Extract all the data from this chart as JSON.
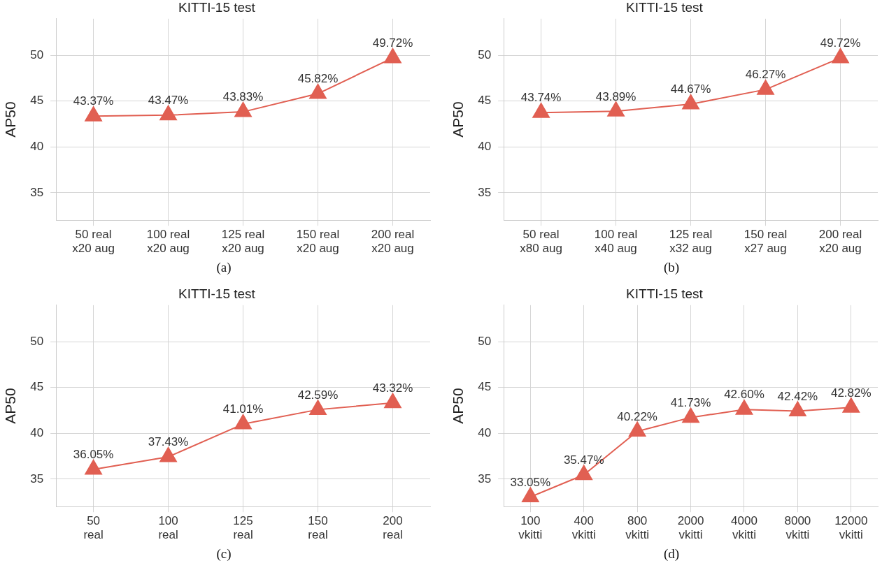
{
  "chart_data": [
    {
      "type": "line",
      "title": "KITTI-15 test",
      "ylabel": "AP50",
      "categories": [
        "50 real\nx20 aug",
        "100 real\nx20 aug",
        "125 real\nx20 aug",
        "150 real\nx20 aug",
        "200 real\nx20 aug"
      ],
      "series": [
        {
          "color": "#e15f52",
          "values": [
            43.37,
            43.47,
            43.83,
            45.82,
            49.72
          ],
          "value_labels": [
            "43.37%",
            "43.47%",
            "43.83%",
            "45.82%",
            "49.72%"
          ]
        }
      ],
      "ylim": [
        32,
        54
      ],
      "yticks": [
        35,
        40,
        45,
        50
      ],
      "grid": true,
      "legend": false,
      "marker": "triangle",
      "line_style": "solid",
      "annotations": [
        "(a)"
      ]
    },
    {
      "type": "line",
      "title": "KITTI-15 test",
      "ylabel": "AP50",
      "categories": [
        "50 real\nx80 aug",
        "100 real\nx40 aug",
        "125 real\nx32 aug",
        "150 real\nx27 aug",
        "200 real\nx20 aug"
      ],
      "series": [
        {
          "color": "#e15f52",
          "values": [
            43.74,
            43.89,
            44.67,
            46.27,
            49.72
          ],
          "value_labels": [
            "43.74%",
            "43.89%",
            "44.67%",
            "46.27%",
            "49.72%"
          ]
        }
      ],
      "ylim": [
        32,
        54
      ],
      "yticks": [
        35,
        40,
        45,
        50
      ],
      "grid": true,
      "legend": false,
      "marker": "triangle",
      "line_style": "solid",
      "annotations": [
        "(b)"
      ]
    },
    {
      "type": "line",
      "title": "KITTI-15 test",
      "ylabel": "AP50",
      "categories": [
        "50\nreal",
        "100\nreal",
        "125\nreal",
        "150\nreal",
        "200\nreal"
      ],
      "series": [
        {
          "color": "#e15f52",
          "values": [
            36.05,
            37.43,
            41.01,
            42.59,
            43.32
          ],
          "value_labels": [
            "36.05%",
            "37.43%",
            "41.01%",
            "42.59%",
            "43.32%"
          ]
        }
      ],
      "ylim": [
        32,
        54
      ],
      "yticks": [
        35,
        40,
        45,
        50
      ],
      "grid": true,
      "legend": false,
      "marker": "triangle",
      "line_style": "solid",
      "annotations": [
        "(c)"
      ]
    },
    {
      "type": "line",
      "title": "KITTI-15 test",
      "ylabel": "AP50",
      "categories": [
        "100\nvkitti",
        "400\nvkitti",
        "800\nvkitti",
        "2000\nvkitti",
        "4000\nvkitti",
        "8000\nvkitti",
        "12000\nvkitti"
      ],
      "series": [
        {
          "color": "#e15f52",
          "values": [
            33.05,
            35.47,
            40.22,
            41.73,
            42.6,
            42.42,
            42.82
          ],
          "value_labels": [
            "33.05%",
            "35.47%",
            "40.22%",
            "41.73%",
            "42.60%",
            "42.42%",
            "42.82%"
          ]
        }
      ],
      "ylim": [
        32,
        54
      ],
      "yticks": [
        35,
        40,
        45,
        50
      ],
      "grid": true,
      "legend": false,
      "marker": "triangle",
      "line_style": "solid",
      "annotations": [
        "(d)"
      ]
    }
  ]
}
